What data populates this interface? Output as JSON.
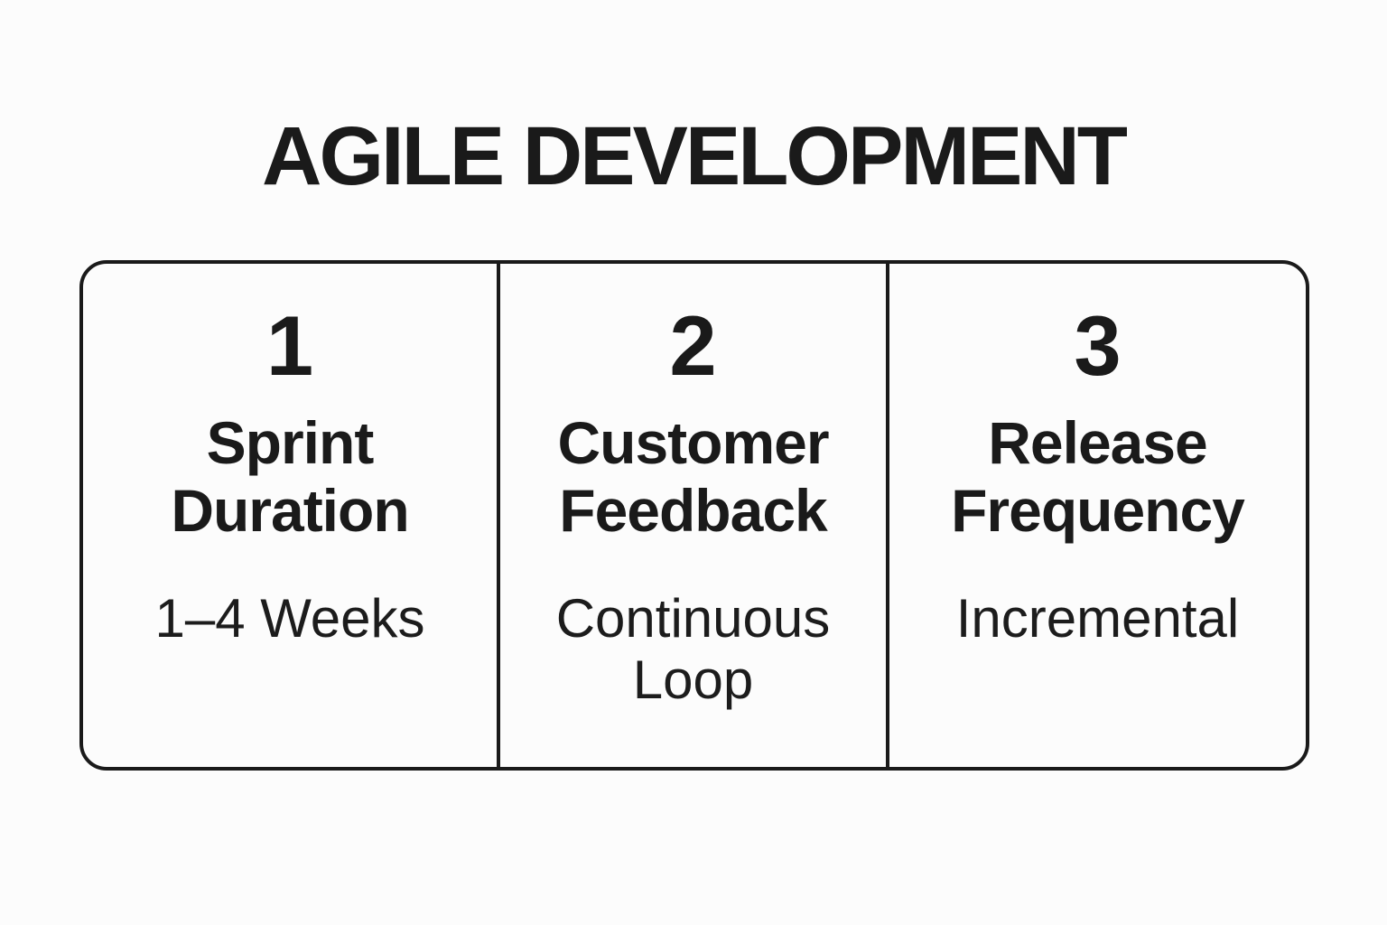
{
  "page": {
    "title": "AGILE DEVELOPMENT"
  },
  "colors": {
    "background": "#fcfcfc",
    "text": "#1a1a1a",
    "border": "#1a1a1a"
  },
  "cards": [
    {
      "number": "1",
      "heading": "Sprint\nDuration",
      "detail": "1–4 Weeks"
    },
    {
      "number": "2",
      "heading": "Customer\nFeedback",
      "detail": "Continuous\nLoop"
    },
    {
      "number": "3",
      "heading": "Release\nFrequency",
      "detail": "Incremental"
    }
  ]
}
